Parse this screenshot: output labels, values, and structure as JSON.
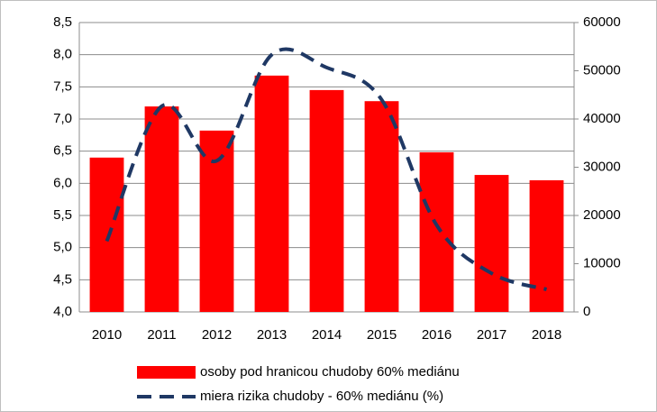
{
  "chart_data": {
    "type": "bar",
    "categories": [
      "2010",
      "2011",
      "2012",
      "2013",
      "2014",
      "2015",
      "2016",
      "2017",
      "2018"
    ],
    "series": [
      {
        "name": "osoby pod hranicou chudoby 60% mediánu",
        "type": "bar",
        "axis": "y2",
        "color": "#ff0000",
        "values": [
          32000,
          42600,
          37600,
          49000,
          46000,
          43700,
          33100,
          28400,
          27300
        ]
      },
      {
        "name": "miera rizika chudoby - 60% mediánu (%)",
        "type": "line",
        "axis": "y",
        "color": "#1f3864",
        "values": [
          5.1,
          7.2,
          6.35,
          8.0,
          7.8,
          7.3,
          5.35,
          4.6,
          4.35
        ]
      }
    ],
    "ylim": [
      4.0,
      8.5
    ],
    "yticks": [
      {
        "value": 4.0,
        "label": "4,0"
      },
      {
        "value": 4.5,
        "label": "4,5"
      },
      {
        "value": 5.0,
        "label": "5,0"
      },
      {
        "value": 5.5,
        "label": "5,5"
      },
      {
        "value": 6.0,
        "label": "6,0"
      },
      {
        "value": 6.5,
        "label": "6,5"
      },
      {
        "value": 7.0,
        "label": "7,0"
      },
      {
        "value": 7.5,
        "label": "7,5"
      },
      {
        "value": 8.0,
        "label": "8,0"
      },
      {
        "value": 8.5,
        "label": "8,5"
      }
    ],
    "y2lim": [
      0,
      60000
    ],
    "y2ticks": [
      0,
      10000,
      20000,
      30000,
      40000,
      50000,
      60000
    ],
    "grid": true,
    "legend": "bottom"
  }
}
